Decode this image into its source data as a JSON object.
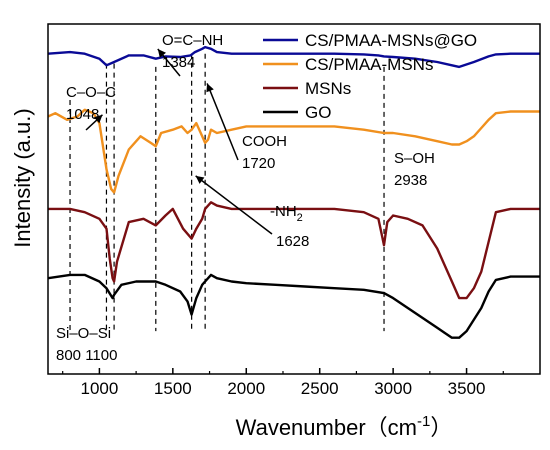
{
  "chart_data": {
    "type": "line",
    "title": "",
    "xlabel": "Wavenumber（cm",
    "xlabel_sup": "-1",
    "xlabel_close": "）",
    "ylabel": "Intensity (a.u.)",
    "xlim": [
      650,
      4000
    ],
    "x_ticks": [
      1000,
      1500,
      2000,
      2500,
      3000,
      3500
    ],
    "y_ticks_shown": false,
    "grid": false,
    "legend_position": "top-right",
    "series": [
      {
        "name": "CS/PMAA-MSNs@GO",
        "color": "#0a0a96",
        "x": [
          650,
          800,
          900,
          1000,
          1048,
          1100,
          1200,
          1300,
          1384,
          1450,
          1550,
          1620,
          1650,
          1700,
          1720,
          1760,
          1800,
          1900,
          2000,
          2200,
          2400,
          2600,
          2800,
          2900,
          2938,
          3000,
          3150,
          3300,
          3400,
          3450,
          3550,
          3650,
          3700,
          3800,
          4000
        ],
        "y": [
          0.97,
          0.975,
          0.97,
          0.955,
          0.935,
          0.945,
          0.965,
          0.965,
          0.955,
          0.962,
          0.96,
          0.965,
          0.975,
          0.985,
          0.99,
          0.985,
          0.975,
          0.97,
          0.97,
          0.97,
          0.97,
          0.97,
          0.968,
          0.965,
          0.962,
          0.96,
          0.955,
          0.945,
          0.935,
          0.93,
          0.945,
          0.962,
          0.968,
          0.97,
          0.97
        ]
      },
      {
        "name": "CS/PMAA-MSNs",
        "color": "#f0901e",
        "x": [
          650,
          700,
          780,
          850,
          900,
          960,
          1000,
          1048,
          1080,
          1100,
          1130,
          1200,
          1280,
          1350,
          1384,
          1420,
          1500,
          1560,
          1600,
          1628,
          1660,
          1700,
          1720,
          1740,
          1760,
          1800,
          1900,
          2000,
          2200,
          2400,
          2600,
          2800,
          2938,
          3000,
          3150,
          3300,
          3400,
          3450,
          3500,
          3550,
          3600,
          3650,
          3700,
          3800,
          4000
        ],
        "y": [
          0.78,
          0.79,
          0.77,
          0.78,
          0.8,
          0.79,
          0.76,
          0.62,
          0.56,
          0.55,
          0.6,
          0.68,
          0.72,
          0.7,
          0.69,
          0.73,
          0.74,
          0.75,
          0.73,
          0.74,
          0.76,
          0.72,
          0.7,
          0.71,
          0.74,
          0.73,
          0.74,
          0.75,
          0.75,
          0.75,
          0.75,
          0.74,
          0.73,
          0.73,
          0.72,
          0.705,
          0.695,
          0.695,
          0.705,
          0.72,
          0.745,
          0.77,
          0.79,
          0.795,
          0.795
        ]
      },
      {
        "name": "MSNs",
        "color": "#7a0f12",
        "x": [
          650,
          700,
          800,
          900,
          1000,
          1048,
          1070,
          1090,
          1100,
          1120,
          1200,
          1300,
          1384,
          1450,
          1500,
          1570,
          1628,
          1660,
          1700,
          1720,
          1760,
          1800,
          1900,
          2000,
          2200,
          2400,
          2600,
          2800,
          2900,
          2938,
          2960,
          3000,
          3100,
          3200,
          3300,
          3400,
          3450,
          3500,
          3550,
          3600,
          3650,
          3700,
          3800,
          4000
        ],
        "y": [
          0.5,
          0.5,
          0.5,
          0.49,
          0.47,
          0.44,
          0.35,
          0.29,
          0.28,
          0.34,
          0.46,
          0.47,
          0.45,
          0.48,
          0.5,
          0.44,
          0.41,
          0.44,
          0.47,
          0.5,
          0.52,
          0.51,
          0.5,
          0.5,
          0.5,
          0.5,
          0.5,
          0.49,
          0.47,
          0.39,
          0.46,
          0.48,
          0.47,
          0.45,
          0.38,
          0.28,
          0.23,
          0.23,
          0.26,
          0.31,
          0.4,
          0.49,
          0.5,
          0.5
        ]
      },
      {
        "name": "GO",
        "color": "#000000",
        "x": [
          650,
          800,
          900,
          1000,
          1048,
          1090,
          1100,
          1150,
          1250,
          1384,
          1450,
          1550,
          1600,
          1628,
          1660,
          1700,
          1720,
          1760,
          1800,
          1900,
          2000,
          2200,
          2400,
          2600,
          2800,
          2938,
          3000,
          3100,
          3200,
          3300,
          3350,
          3400,
          3450,
          3500,
          3600,
          3650,
          3700,
          3800,
          4000
        ],
        "y": [
          0.29,
          0.3,
          0.3,
          0.28,
          0.26,
          0.23,
          0.24,
          0.27,
          0.28,
          0.28,
          0.27,
          0.25,
          0.22,
          0.18,
          0.23,
          0.27,
          0.28,
          0.3,
          0.29,
          0.28,
          0.275,
          0.27,
          0.265,
          0.26,
          0.255,
          0.245,
          0.23,
          0.2,
          0.17,
          0.14,
          0.125,
          0.11,
          0.11,
          0.13,
          0.2,
          0.25,
          0.285,
          0.295,
          0.295
        ]
      }
    ],
    "reference_lines": [
      800,
      1048,
      1100,
      1384,
      1628,
      1720,
      2938
    ],
    "annotations": [
      {
        "id": "c-o-c",
        "lines": [
          "C–O–C",
          "1048"
        ],
        "arrow_to": [
          1048,
          0.785
        ]
      },
      {
        "id": "o-c-nh",
        "lines": [
          "O=C–NH",
          "1384"
        ],
        "arrow_to": [
          1384,
          0.96
        ]
      },
      {
        "id": "cooh",
        "lines": [
          "COOH",
          "1720"
        ],
        "arrow_to": [
          1720,
          0.88
        ]
      },
      {
        "id": "s-oh",
        "lines": [
          "S–OH",
          "2938"
        ]
      },
      {
        "id": "nh2",
        "lines": [
          "-NH",
          "2",
          "1628"
        ],
        "arrow_to": [
          1628,
          0.6
        ]
      },
      {
        "id": "si-o-si",
        "lines": [
          "Si–O–Si",
          "800  1100"
        ]
      }
    ]
  }
}
